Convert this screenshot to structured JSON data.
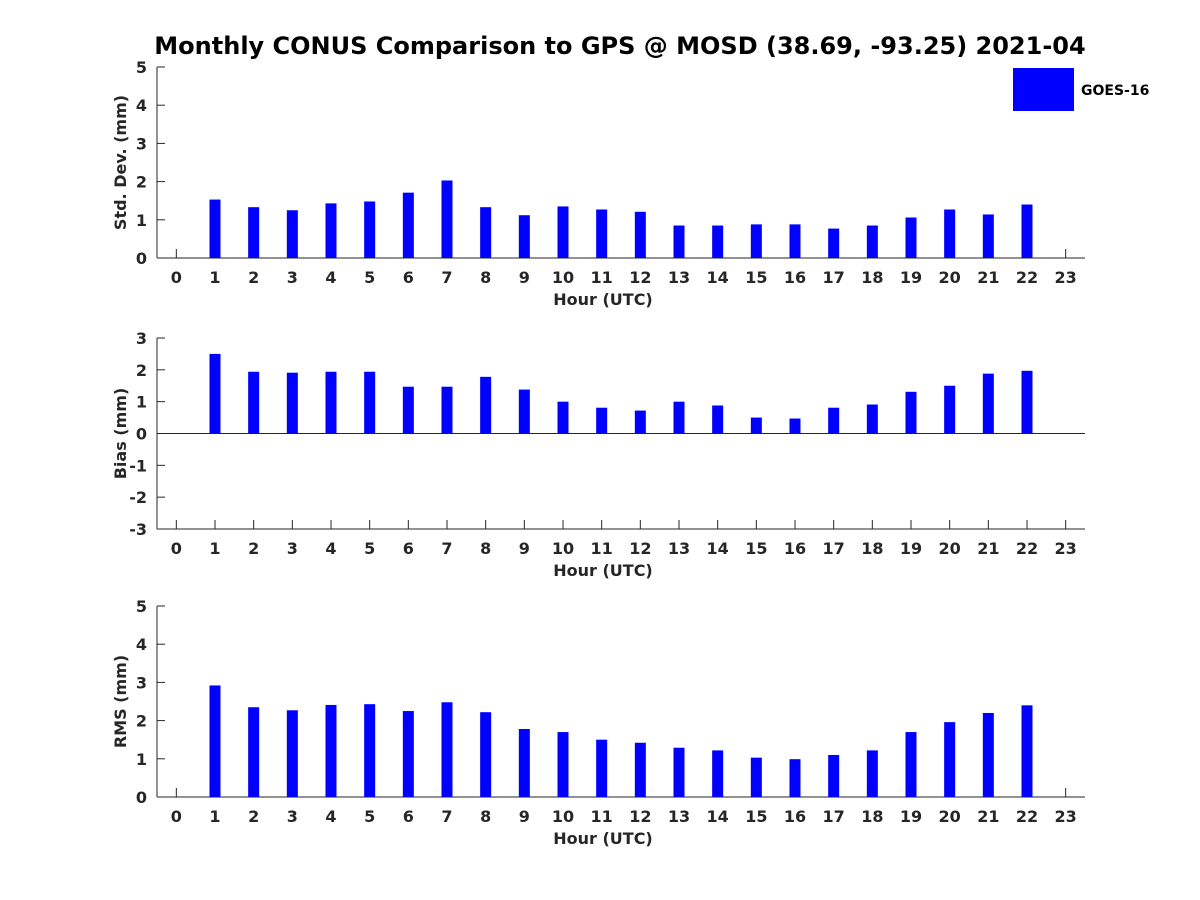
{
  "figure_title": "Monthly CONUS Comparison to GPS @ MOSD (38.69, -93.25) 2021-04",
  "legend": {
    "label": "GOES-16"
  },
  "colors": {
    "bar": "#0000ff",
    "axis": "#262626",
    "background": "#ffffff"
  },
  "chart_data": [
    {
      "type": "bar",
      "title": "",
      "xlabel": "Hour (UTC)",
      "ylabel": "Std. Dev. (mm)",
      "ylim": [
        0,
        5
      ],
      "yticks": [
        0,
        1,
        2,
        3,
        4,
        5
      ],
      "xlim": [
        -0.5,
        23.5
      ],
      "categories": [
        0,
        1,
        2,
        3,
        4,
        5,
        6,
        7,
        8,
        9,
        10,
        11,
        12,
        13,
        14,
        15,
        16,
        17,
        18,
        19,
        20,
        21,
        22,
        23
      ],
      "series": [
        {
          "name": "GOES-16",
          "values": [
            null,
            1.53,
            1.33,
            1.25,
            1.43,
            1.48,
            1.71,
            2.03,
            1.33,
            1.12,
            1.35,
            1.27,
            1.21,
            0.85,
            0.85,
            0.88,
            0.88,
            0.77,
            0.85,
            1.06,
            1.27,
            1.14,
            1.4,
            null
          ]
        }
      ],
      "grid": false
    },
    {
      "type": "bar",
      "title": "",
      "xlabel": "Hour (UTC)",
      "ylabel": "Bias (mm)",
      "ylim": [
        -3,
        3
      ],
      "yticks": [
        -3,
        -2,
        -1,
        0,
        1,
        2,
        3
      ],
      "xlim": [
        -0.5,
        23.5
      ],
      "categories": [
        0,
        1,
        2,
        3,
        4,
        5,
        6,
        7,
        8,
        9,
        10,
        11,
        12,
        13,
        14,
        15,
        16,
        17,
        18,
        19,
        20,
        21,
        22,
        23
      ],
      "series": [
        {
          "name": "GOES-16",
          "values": [
            null,
            2.5,
            1.94,
            1.91,
            1.94,
            1.94,
            1.47,
            1.47,
            1.78,
            1.38,
            1.0,
            0.81,
            0.72,
            1.0,
            0.88,
            0.5,
            0.47,
            0.81,
            0.91,
            1.31,
            1.5,
            1.88,
            1.97,
            null
          ]
        }
      ],
      "grid": false
    },
    {
      "type": "bar",
      "title": "",
      "xlabel": "Hour (UTC)",
      "ylabel": "RMS (mm)",
      "ylim": [
        0,
        5
      ],
      "yticks": [
        0,
        1,
        2,
        3,
        4,
        5
      ],
      "xlim": [
        -0.5,
        23.5
      ],
      "categories": [
        0,
        1,
        2,
        3,
        4,
        5,
        6,
        7,
        8,
        9,
        10,
        11,
        12,
        13,
        14,
        15,
        16,
        17,
        18,
        19,
        20,
        21,
        22,
        23
      ],
      "series": [
        {
          "name": "GOES-16",
          "values": [
            null,
            2.92,
            2.35,
            2.27,
            2.41,
            2.43,
            2.25,
            2.48,
            2.22,
            1.78,
            1.7,
            1.5,
            1.42,
            1.29,
            1.22,
            1.03,
            0.99,
            1.1,
            1.22,
            1.7,
            1.96,
            2.2,
            2.4,
            null
          ]
        }
      ],
      "grid": false
    }
  ]
}
